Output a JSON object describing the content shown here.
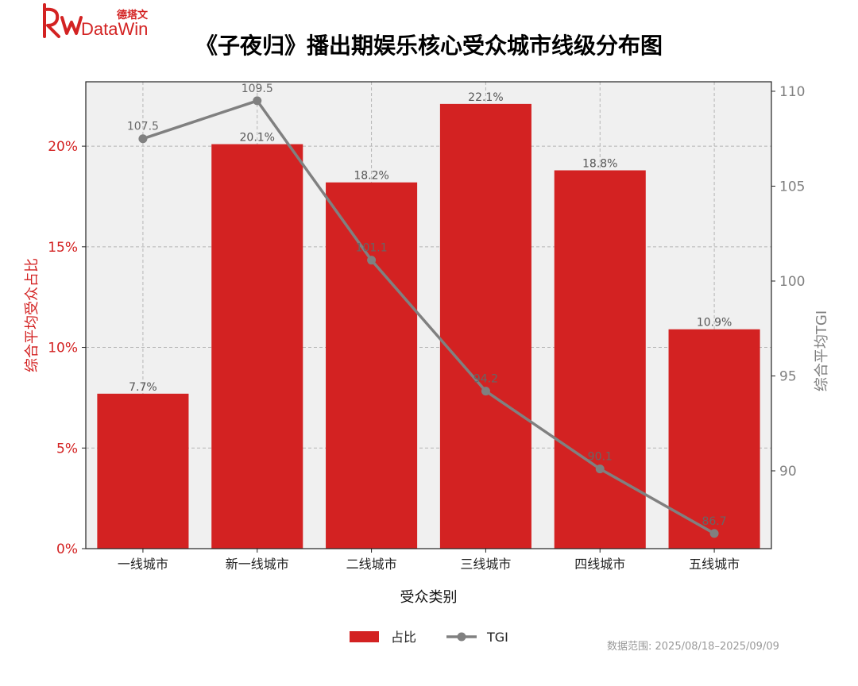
{
  "header": {
    "logo_brand": "DataWin",
    "logo_cn": "德塔文",
    "title": "《子夜归》播出期娱乐核心受众城市线级分布图"
  },
  "footer": {
    "date_range": "数据范围: 2025/08/18–2025/09/09"
  },
  "colors": {
    "bar": "#d32222",
    "line": "#808080",
    "plot_bg": "#f0f0f0",
    "left_axis": "#d32222",
    "right_axis": "#808080"
  },
  "chart_data": {
    "type": "bar",
    "combo": "bar+line (dual y-axis)",
    "categories": [
      "一线城市",
      "新一线城市",
      "二线城市",
      "三线城市",
      "四线城市",
      "五线城市"
    ],
    "series": [
      {
        "name": "占比",
        "type": "bar",
        "axis": "left",
        "values": [
          7.7,
          20.1,
          18.2,
          22.1,
          18.8,
          10.9
        ],
        "labels": [
          "7.7%",
          "20.1%",
          "18.2%",
          "22.1%",
          "18.8%",
          "10.9%"
        ]
      },
      {
        "name": "TGI",
        "type": "line",
        "axis": "right",
        "values": [
          107.5,
          109.5,
          101.1,
          94.2,
          90.1,
          86.7
        ],
        "labels": [
          "107.5",
          "109.5",
          "101.1",
          "94.2",
          "90.1",
          "86.7"
        ]
      }
    ],
    "xlabel": "受众类别",
    "ylabel_left": "综合平均受众占比",
    "ylabel_right": "综合平均TGI",
    "ylim_left": [
      0,
      23.2
    ],
    "ylim_right": [
      85.9,
      110.5
    ],
    "yticks_left": [
      0,
      5,
      10,
      15,
      20
    ],
    "yticks_left_labels": [
      "0%",
      "5%",
      "10%",
      "15%",
      "20%"
    ],
    "yticks_right": [
      90,
      95,
      100,
      105,
      110
    ],
    "yticks_right_labels": [
      "90",
      "95",
      "100",
      "105",
      "110"
    ],
    "grid": true,
    "legend_position": "bottom-center"
  }
}
